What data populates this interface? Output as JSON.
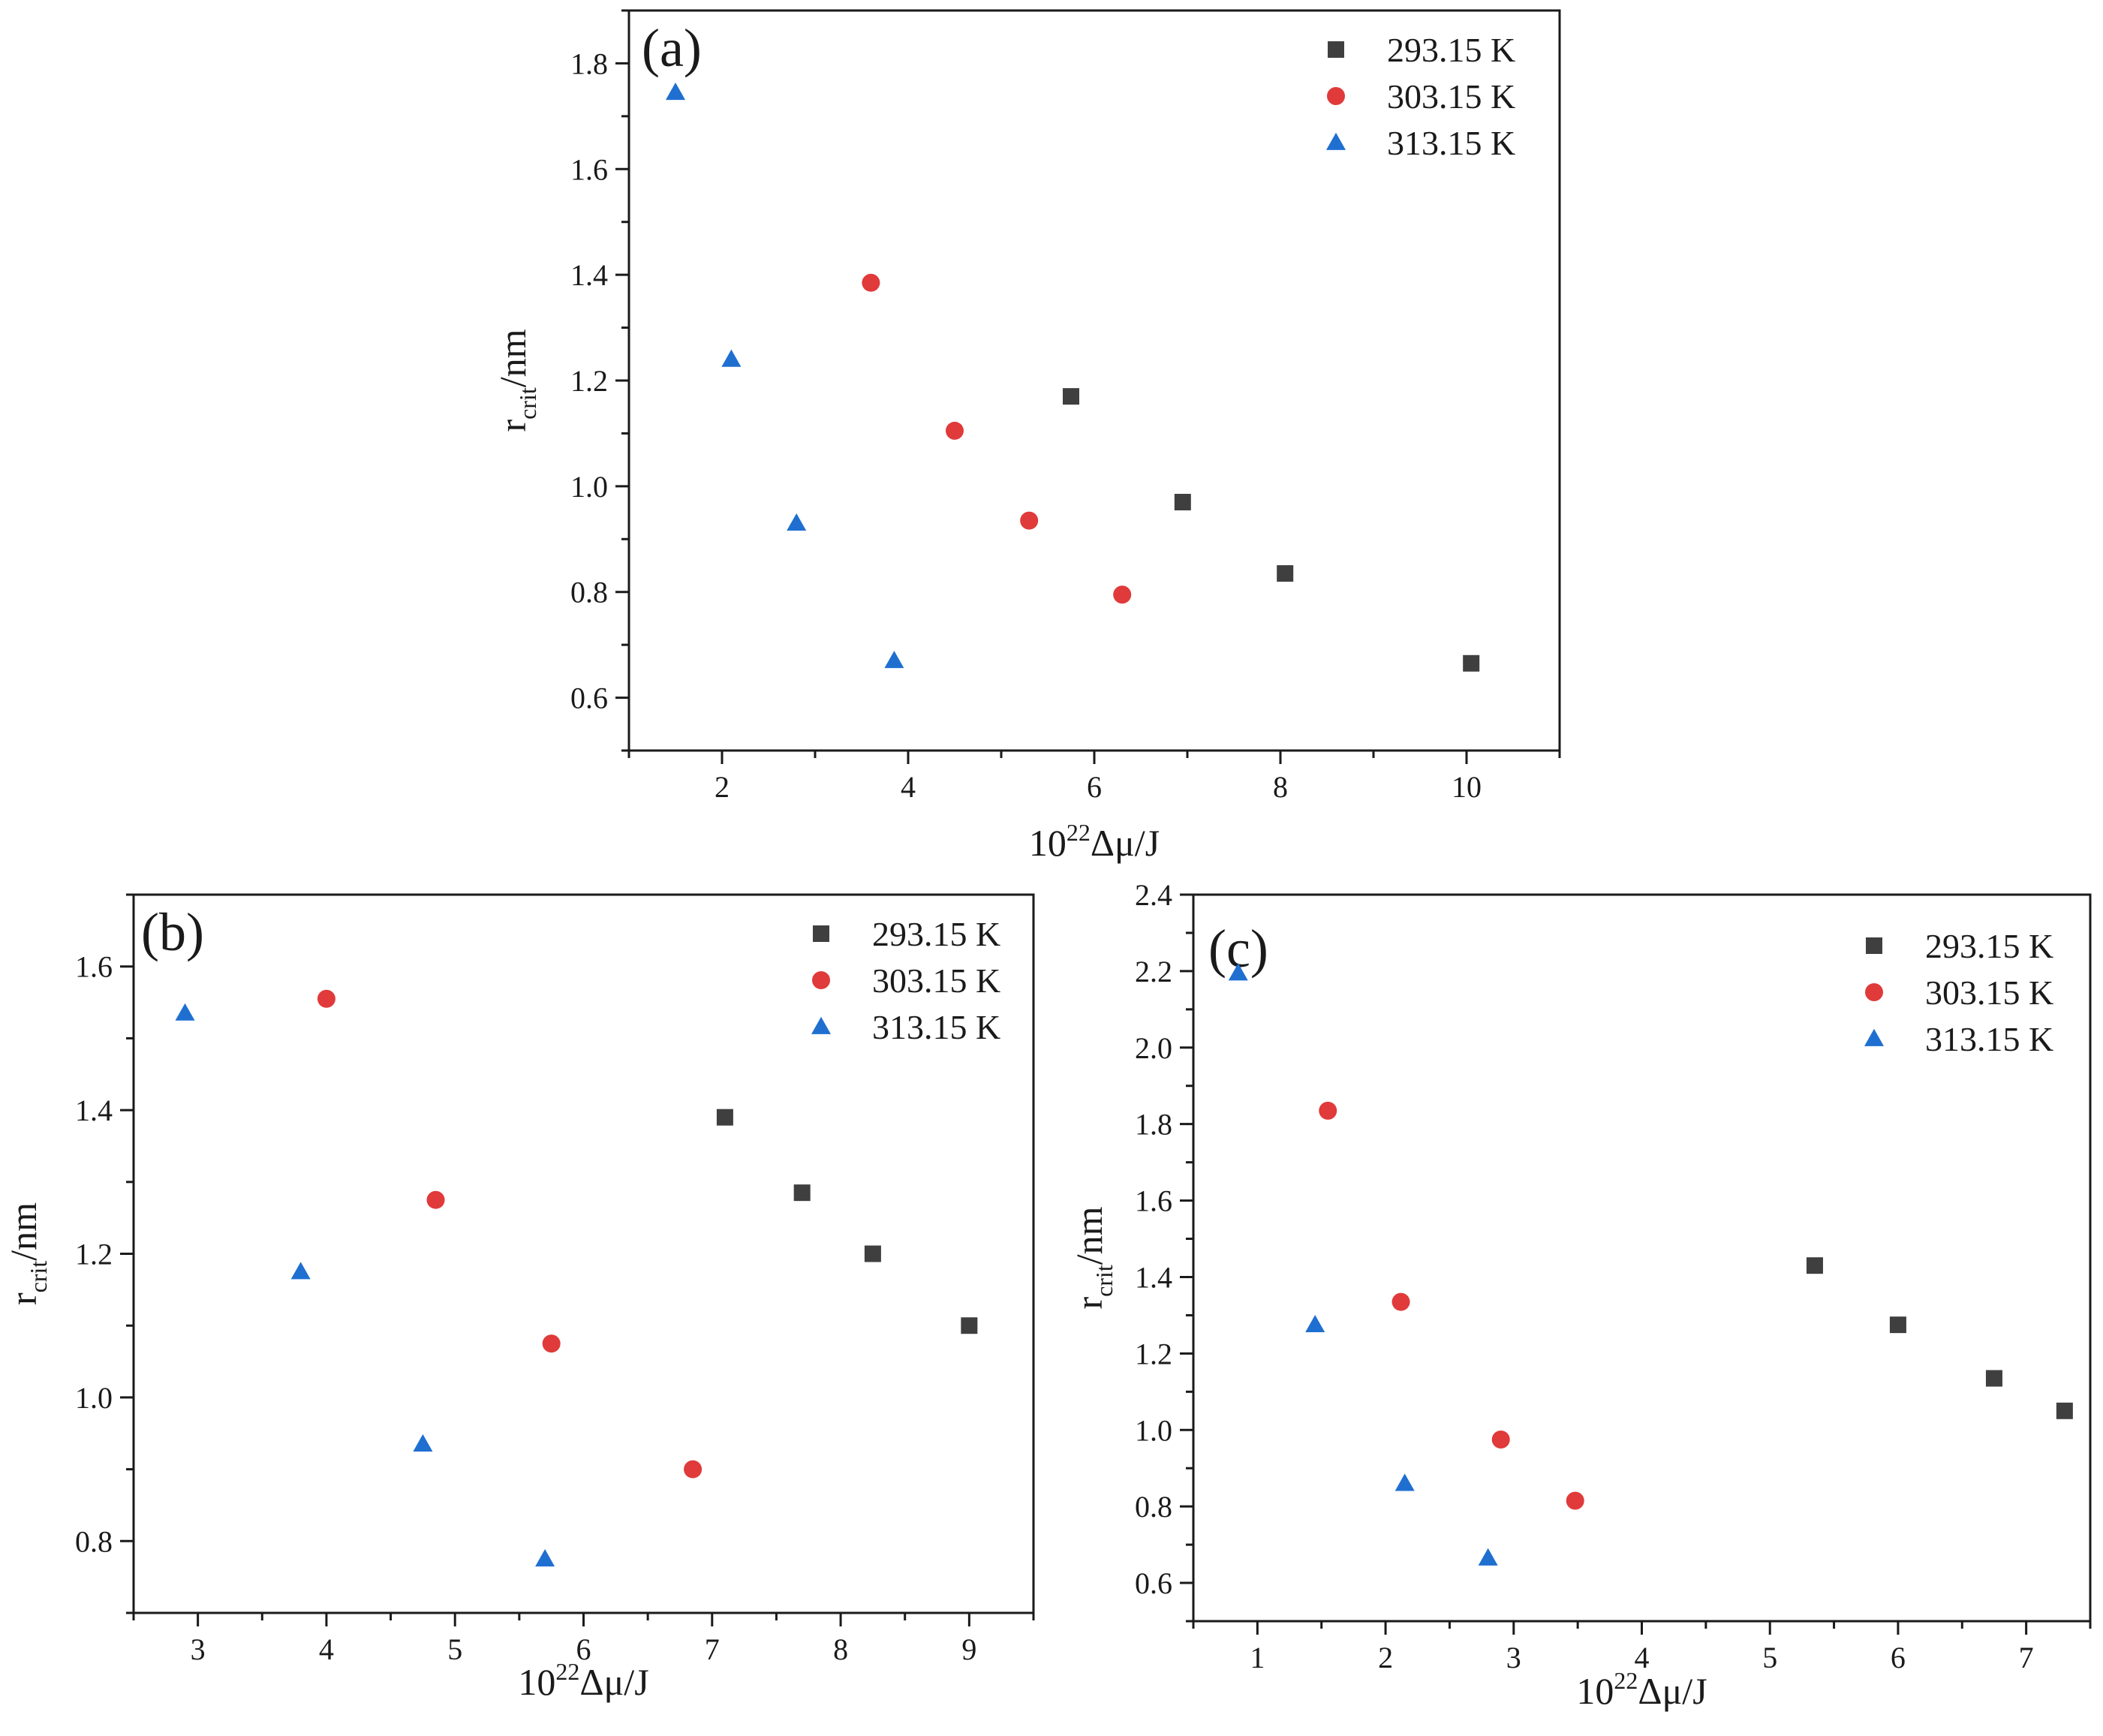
{
  "figure": {
    "panels": [
      "(a)",
      "(b)",
      "(c)"
    ]
  },
  "colors": {
    "293.15 K": "#3f3f3f",
    "303.15 K": "#e03a3a",
    "313.15 K": "#1f6fd1",
    "axis": "#1a1a1a"
  },
  "chart_data": [
    {
      "type": "scatter",
      "panel_label": "(a)",
      "xlabel_base": "10",
      "xlabel_exp": "22",
      "xlabel_rest": "Δμ/J",
      "ylabel_main": "r",
      "ylabel_sub": "crit",
      "ylabel_rest": "/nm",
      "xlim": [
        1,
        11
      ],
      "ylim": [
        0.5,
        1.9
      ],
      "xticks": [
        2,
        4,
        6,
        8,
        10
      ],
      "yticks": [
        0.6,
        0.8,
        1.0,
        1.2,
        1.4,
        1.6,
        1.8
      ],
      "xtick_labels": [
        "2",
        "4",
        "6",
        "8",
        "10"
      ],
      "ytick_labels": [
        "0.6",
        "0.8",
        "1.0",
        "1.2",
        "1.4",
        "1.6",
        "1.8"
      ],
      "legend_position": "top-right",
      "series": [
        {
          "name": "293.15 K",
          "marker": "square",
          "x": [
            5.75,
            6.95,
            8.05,
            10.05
          ],
          "y": [
            1.17,
            0.97,
            0.835,
            0.665
          ]
        },
        {
          "name": "303.15 K",
          "marker": "circle",
          "x": [
            3.6,
            4.5,
            5.3,
            6.3
          ],
          "y": [
            1.385,
            1.105,
            0.935,
            0.795
          ]
        },
        {
          "name": "313.15 K",
          "marker": "triangle",
          "x": [
            1.5,
            2.1,
            2.8,
            3.85
          ],
          "y": [
            1.745,
            1.24,
            0.93,
            0.67
          ]
        }
      ]
    },
    {
      "type": "scatter",
      "panel_label": "(b)",
      "xlabel_base": "10",
      "xlabel_exp": "22",
      "xlabel_rest": "Δμ/J",
      "ylabel_main": "r",
      "ylabel_sub": "crit",
      "ylabel_rest": "/nm",
      "xlim": [
        2.5,
        9.5
      ],
      "ylim": [
        0.7,
        1.7
      ],
      "xticks": [
        3,
        4,
        5,
        6,
        7,
        8,
        9
      ],
      "yticks": [
        0.8,
        1.0,
        1.2,
        1.4,
        1.6
      ],
      "xtick_labels": [
        "3",
        "4",
        "5",
        "6",
        "7",
        "8",
        "9"
      ],
      "ytick_labels": [
        "0.8",
        "1.0",
        "1.2",
        "1.4",
        "1.6"
      ],
      "legend_position": "top-right",
      "series": [
        {
          "name": "293.15 K",
          "marker": "square",
          "x": [
            7.1,
            7.7,
            8.25,
            9.0
          ],
          "y": [
            1.39,
            1.285,
            1.2,
            1.1
          ]
        },
        {
          "name": "303.15 K",
          "marker": "circle",
          "x": [
            4.0,
            4.85,
            5.75,
            6.85
          ],
          "y": [
            1.555,
            1.275,
            1.075,
            0.9
          ]
        },
        {
          "name": "313.15 K",
          "marker": "triangle",
          "x": [
            2.9,
            3.8,
            4.75,
            5.7
          ],
          "y": [
            1.535,
            1.175,
            0.935,
            0.775
          ]
        }
      ]
    },
    {
      "type": "scatter",
      "panel_label": "(c)",
      "xlabel_base": "10",
      "xlabel_exp": "22",
      "xlabel_rest": "Δμ/J",
      "ylabel_main": "r",
      "ylabel_sub": "crit",
      "ylabel_rest": "/nm",
      "xlim": [
        0.5,
        7.5
      ],
      "ylim": [
        0.5,
        2.4
      ],
      "xticks": [
        1,
        2,
        3,
        4,
        5,
        6,
        7
      ],
      "yticks": [
        0.6,
        0.8,
        1.0,
        1.2,
        1.4,
        1.6,
        1.8,
        2.0,
        2.2,
        2.4
      ],
      "xtick_labels": [
        "1",
        "2",
        "3",
        "4",
        "5",
        "6",
        "7"
      ],
      "ytick_labels": [
        "0.6",
        "0.8",
        "1.0",
        "1.2",
        "1.4",
        "1.6",
        "1.8",
        "2.0",
        "2.2",
        "2.4"
      ],
      "legend_position": "top-right",
      "series": [
        {
          "name": "293.15 K",
          "marker": "square",
          "x": [
            5.35,
            6.0,
            6.75,
            7.3
          ],
          "y": [
            1.43,
            1.275,
            1.135,
            1.05
          ]
        },
        {
          "name": "303.15 K",
          "marker": "circle",
          "x": [
            1.55,
            2.12,
            2.9,
            3.48
          ],
          "y": [
            1.835,
            1.335,
            0.975,
            0.815
          ]
        },
        {
          "name": "313.15 K",
          "marker": "triangle",
          "x": [
            0.85,
            1.45,
            2.15,
            2.8
          ],
          "y": [
            2.195,
            1.275,
            0.86,
            0.665
          ]
        }
      ]
    }
  ]
}
